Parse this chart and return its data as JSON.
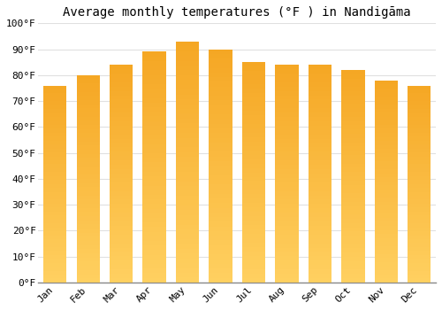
{
  "title": "Average monthly temperatures (°F ) in Nandigāma",
  "months": [
    "Jan",
    "Feb",
    "Mar",
    "Apr",
    "May",
    "Jun",
    "Jul",
    "Aug",
    "Sep",
    "Oct",
    "Nov",
    "Dec"
  ],
  "values": [
    76,
    80,
    84,
    89,
    93,
    90,
    85,
    84,
    84,
    82,
    78,
    76
  ],
  "bar_color_top": "#F5A623",
  "bar_color_bottom": "#FFD060",
  "ylim": [
    0,
    100
  ],
  "yticks": [
    0,
    10,
    20,
    30,
    40,
    50,
    60,
    70,
    80,
    90,
    100
  ],
  "ytick_labels": [
    "0°F",
    "10°F",
    "20°F",
    "30°F",
    "40°F",
    "50°F",
    "60°F",
    "70°F",
    "80°F",
    "90°F",
    "100°F"
  ],
  "background_color": "#ffffff",
  "grid_color": "#e0e0e0",
  "title_fontsize": 10,
  "tick_fontsize": 8,
  "bar_edge_color": "#cccccc"
}
